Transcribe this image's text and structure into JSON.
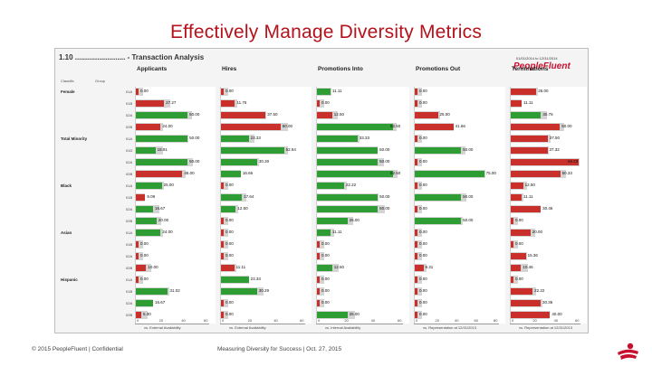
{
  "slide": {
    "title": "Effectively Manage Diversity Metrics",
    "footer_left": "© 2015 PeopleFluent | Confidential",
    "footer_center": "Measuring Diversity for Success | Oct. 27, 2015"
  },
  "report": {
    "header": "1.10 ......................... - Transaction Analysis",
    "date_range": "01/01/2014 to 12/31/2014",
    "logo": "PeopleFluent",
    "group_headers": [
      "Classific",
      "Group"
    ],
    "columns": [
      {
        "title": "Applicants",
        "axis_label": "vs. External Availability",
        "ticks": [
          "0",
          "20",
          "40",
          "60"
        ]
      },
      {
        "title": "Hires",
        "axis_label": "vs. External Availability",
        "ticks": [
          "0",
          "20",
          "40",
          "60"
        ]
      },
      {
        "title": "Promotions Into",
        "axis_label": "vs. Internal Availability",
        "ticks": [
          "0",
          "20",
          "40",
          "60"
        ]
      },
      {
        "title": "Promotions Out",
        "axis_label": "vs. Representation at 12/31/2013",
        "ticks": [
          "0",
          "20",
          "40",
          "60",
          "80"
        ]
      },
      {
        "title": "Terminations",
        "axis_label": "vs. Representation at 12/31/2013",
        "ticks": [
          "0",
          "20",
          "40",
          "60"
        ]
      }
    ],
    "groups": [
      {
        "name": "Female",
        "row": 0
      },
      {
        "name": "Total Minority",
        "row": 4
      },
      {
        "name": "Black",
        "row": 8
      },
      {
        "name": "Asian",
        "row": 12
      },
      {
        "name": "Hispanic",
        "row": 16
      }
    ],
    "rows": [
      {
        "code": "01A",
        "values": [
          "0.00",
          "0.00",
          "11.11",
          "0.00",
          "26.00"
        ],
        "status": [
          "r",
          "r",
          "g",
          "r",
          "r"
        ]
      },
      {
        "code": "01B",
        "values": [
          "27.27",
          "11.76",
          "0.00",
          "0.00",
          "11.11"
        ],
        "status": [
          "r",
          "r",
          "r",
          "r",
          "r"
        ]
      },
      {
        "code": "02A",
        "values": [
          "50.00",
          "37.50",
          "12.50",
          "25.00",
          "30.76"
        ],
        "status": [
          "g",
          "r",
          "r",
          "r",
          "g"
        ]
      },
      {
        "code": "02B",
        "values": [
          "24.00",
          "50.00",
          "62.50",
          "41.66",
          "50.00"
        ],
        "status": [
          "r",
          "r",
          "g",
          "r",
          "r"
        ]
      },
      {
        "code": "01A",
        "values": [
          "50.00",
          "23.33",
          "33.33",
          "0.00",
          "37.50"
        ],
        "status": [
          "g",
          "g",
          "g",
          "r",
          "r"
        ]
      },
      {
        "code": "01D",
        "values": [
          "18.91",
          "52.94",
          "50.00",
          "50.00",
          "37.32"
        ],
        "status": [
          "g",
          "g",
          "g",
          "g",
          "r"
        ]
      },
      {
        "code": "02A",
        "values": [
          "50.00",
          "30.30",
          "50.00",
          "0.00",
          "69.23"
        ],
        "status": [
          "g",
          "g",
          "g",
          "r",
          "r"
        ]
      },
      {
        "code": "02B",
        "values": [
          "45.00",
          "16.66",
          "62.50",
          "75.00",
          "50.33"
        ],
        "status": [
          "r",
          "g",
          "g",
          "g",
          "r"
        ]
      },
      {
        "code": "01A",
        "values": [
          "25.00",
          "0.00",
          "22.22",
          "0.00",
          "12.50"
        ],
        "status": [
          "g",
          "r",
          "g",
          "r",
          "r"
        ]
      },
      {
        "code": "01B",
        "values": [
          "9.09",
          "17.64",
          "50.00",
          "50.00",
          "11.11"
        ],
        "status": [
          "r",
          "g",
          "g",
          "g",
          "r"
        ]
      },
      {
        "code": "02A",
        "values": [
          "16.67",
          "12.50",
          "50.00",
          "0.00",
          "30.46"
        ],
        "status": [
          "g",
          "g",
          "g",
          "r",
          "r"
        ]
      },
      {
        "code": "02B",
        "values": [
          "20.00",
          "0.00",
          "25.00",
          "50.00",
          "0.00"
        ],
        "status": [
          "g",
          "r",
          "g",
          "g",
          "r"
        ]
      },
      {
        "code": "01A",
        "values": [
          "24.00",
          "0.00",
          "11.11",
          "0.00",
          "20.00"
        ],
        "status": [
          "g",
          "r",
          "g",
          "r",
          "r"
        ]
      },
      {
        "code": "01B",
        "values": [
          "0.00",
          "0.00",
          "0.00",
          "0.00",
          "0.00"
        ],
        "status": [
          "r",
          "r",
          "r",
          "r",
          "r"
        ]
      },
      {
        "code": "02A",
        "values": [
          "0.00",
          "0.00",
          "0.00",
          "0.00",
          "15.36"
        ],
        "status": [
          "r",
          "r",
          "r",
          "r",
          "r"
        ]
      },
      {
        "code": "02B",
        "values": [
          "10.00",
          "11.11",
          "12.50",
          "9.31",
          "10.46"
        ],
        "status": [
          "r",
          "r",
          "g",
          "r",
          "r"
        ]
      },
      {
        "code": "01A",
        "values": [
          "0.00",
          "23.33",
          "0.00",
          "0.00",
          "0.00"
        ],
        "status": [
          "r",
          "g",
          "r",
          "r",
          "r"
        ]
      },
      {
        "code": "01B",
        "values": [
          "31.02",
          "30.29",
          "0.00",
          "0.00",
          "22.22"
        ],
        "status": [
          "g",
          "g",
          "r",
          "r",
          "r"
        ]
      },
      {
        "code": "02A",
        "values": [
          "16.67",
          "0.00",
          "0.00",
          "0.00",
          "30.36"
        ],
        "status": [
          "g",
          "r",
          "r",
          "r",
          "r"
        ]
      },
      {
        "code": "02B",
        "values": [
          "5.30",
          "0.00",
          "25.00",
          "0.00",
          "40.00"
        ],
        "status": [
          "r",
          "r",
          "g",
          "r",
          "r"
        ]
      }
    ]
  }
}
